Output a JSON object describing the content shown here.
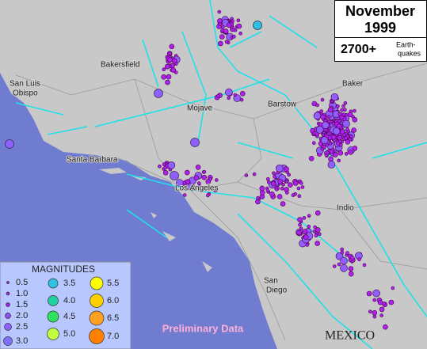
{
  "title_box": {
    "month": "November",
    "year": "1999",
    "count": "2700+",
    "count_label": [
      "Earth-",
      "quakes"
    ]
  },
  "cities": [
    {
      "label": [
        "Bakersfield"
      ]
    },
    {
      "label": [
        "San Luis",
        "Obispo"
      ]
    },
    {
      "label": [
        "Mojave"
      ]
    },
    {
      "label": [
        "Barstow"
      ]
    },
    {
      "label": [
        "Baker"
      ]
    },
    {
      "label": [
        "Santa Barbara"
      ]
    },
    {
      "label": [
        "Los Angeles"
      ]
    },
    {
      "label": [
        "Indio"
      ]
    },
    {
      "label": [
        "San",
        "Diego"
      ]
    }
  ],
  "country": "MEXICO",
  "legend": {
    "title": "MAGNITUDES",
    "items": [
      {
        "label": "0.5",
        "color": "#a020f0"
      },
      {
        "label": "1.0",
        "color": "#a020f0"
      },
      {
        "label": "1.5",
        "color": "#a020f0"
      },
      {
        "label": "2.0",
        "color": "#9050f0"
      },
      {
        "label": "2.5",
        "color": "#9060ff"
      },
      {
        "label": "3.0",
        "color": "#8070ff"
      },
      {
        "label": "3.5",
        "color": "#30c0e0"
      },
      {
        "label": "4.0",
        "color": "#20d0a0"
      },
      {
        "label": "4.5",
        "color": "#30e060"
      },
      {
        "label": "5.0",
        "color": "#c0ff40"
      },
      {
        "label": "5.5",
        "color": "#ffff00"
      },
      {
        "label": "6.0",
        "color": "#ffd000"
      },
      {
        "label": "6.5",
        "color": "#ffa020"
      },
      {
        "label": "7.0",
        "color": "#ff8000"
      }
    ]
  },
  "footer": "Preliminary Data"
}
